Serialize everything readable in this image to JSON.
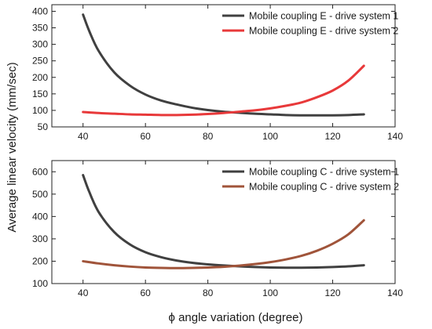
{
  "figure": {
    "ylabel": "Average linear velocity (mm/sec)",
    "xlabel": "ϕ angle variation (degree)"
  },
  "chart_data": [
    {
      "type": "line",
      "xlim": [
        30,
        140
      ],
      "ylim": [
        50,
        420
      ],
      "xticks": [
        "40",
        "60",
        "80",
        "100",
        "120",
        "140"
      ],
      "yticks": [
        "50",
        "100",
        "150",
        "200",
        "250",
        "300",
        "350",
        "400"
      ],
      "legend_position": "top-right",
      "series": [
        {
          "name": "Mobile coupling E - drive system 1",
          "color": "#404040",
          "x": [
            40,
            42,
            45,
            50,
            55,
            60,
            65,
            70,
            75,
            80,
            85,
            90,
            95,
            100,
            105,
            110,
            115,
            120,
            125,
            130
          ],
          "y": [
            390,
            340,
            280,
            215,
            175,
            148,
            130,
            118,
            108,
            101,
            96,
            93,
            90,
            88,
            86,
            85,
            85,
            85,
            86,
            88
          ]
        },
        {
          "name": "Mobile coupling E - drive system 2",
          "color": "#e8393a",
          "x": [
            40,
            45,
            50,
            55,
            60,
            65,
            70,
            75,
            80,
            85,
            90,
            95,
            100,
            105,
            110,
            115,
            120,
            125,
            130
          ],
          "y": [
            95,
            92,
            90,
            88,
            87,
            86,
            86,
            87,
            89,
            92,
            96,
            100,
            106,
            114,
            124,
            140,
            160,
            190,
            235
          ]
        }
      ]
    },
    {
      "type": "line",
      "xlim": [
        30,
        140
      ],
      "ylim": [
        100,
        650
      ],
      "xticks": [
        "40",
        "60",
        "80",
        "100",
        "120",
        "140"
      ],
      "yticks": [
        "100",
        "200",
        "300",
        "400",
        "500",
        "600"
      ],
      "legend_position": "top-right",
      "series": [
        {
          "name": "Mobile coupling C - drive system 1",
          "color": "#404040",
          "x": [
            40,
            42,
            45,
            50,
            55,
            60,
            65,
            70,
            75,
            80,
            85,
            90,
            95,
            100,
            105,
            110,
            115,
            120,
            125,
            130
          ],
          "y": [
            585,
            510,
            420,
            330,
            275,
            240,
            218,
            203,
            193,
            186,
            181,
            177,
            174,
            172,
            171,
            171,
            172,
            174,
            177,
            182
          ]
        },
        {
          "name": "Mobile coupling C - drive system 2",
          "color": "#a0543a",
          "x": [
            40,
            45,
            50,
            55,
            60,
            65,
            70,
            75,
            80,
            85,
            90,
            95,
            100,
            105,
            110,
            115,
            120,
            125,
            130
          ],
          "y": [
            200,
            190,
            182,
            176,
            172,
            170,
            169,
            170,
            172,
            175,
            180,
            187,
            196,
            208,
            224,
            247,
            278,
            320,
            383
          ]
        }
      ]
    }
  ]
}
